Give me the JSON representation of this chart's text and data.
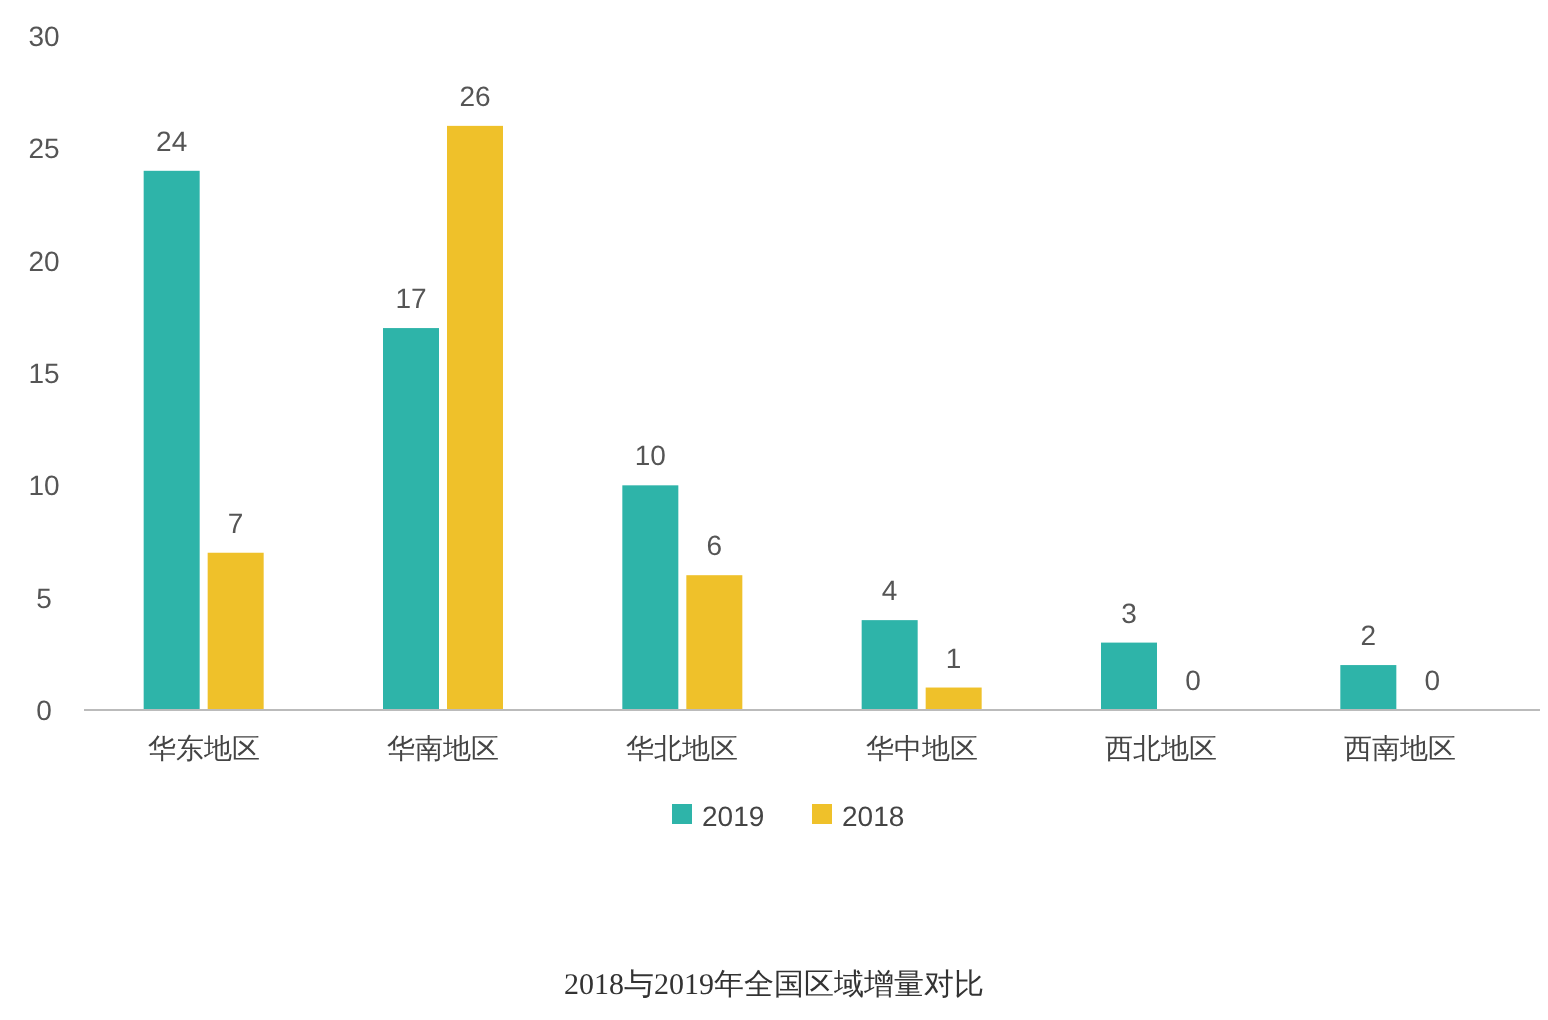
{
  "chart_data": {
    "type": "bar",
    "title": "2018与2019年全国区域增量对比",
    "categories": [
      "华东地区",
      "华南地区",
      "华北地区",
      "华中地区",
      "西北地区",
      "西南地区"
    ],
    "series": [
      {
        "name": "2019",
        "color": "#2eb4a9",
        "values": [
          24,
          17,
          10,
          4,
          3,
          2
        ]
      },
      {
        "name": "2018",
        "color": "#efc12a",
        "values": [
          7,
          26,
          6,
          1,
          0,
          0
        ]
      }
    ],
    "ylim": [
      0,
      30
    ],
    "yticks": [
      0,
      5,
      10,
      15,
      20,
      25,
      30
    ],
    "data_labels": true,
    "legend": "bottom"
  }
}
